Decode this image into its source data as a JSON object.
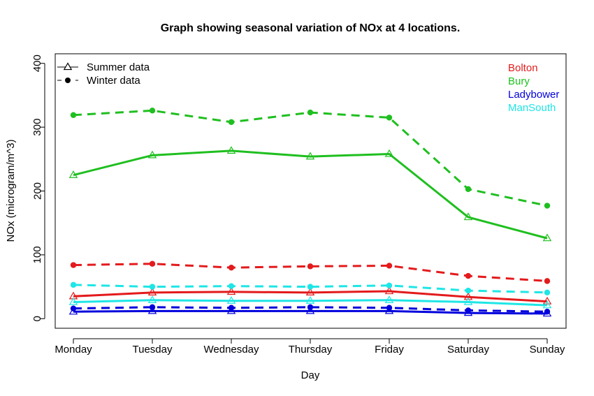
{
  "chart_data": {
    "type": "line",
    "title": "Graph showing seasonal variation of NOx at 4 locations.",
    "xlabel": "Day",
    "ylabel": "NOx (microgram/m^3)",
    "categories": [
      "Monday",
      "Tuesday",
      "Wednesday",
      "Thursday",
      "Friday",
      "Saturday",
      "Sunday"
    ],
    "y_ticks": [
      0,
      100,
      200,
      300,
      400
    ],
    "ylim": [
      -15,
      415
    ],
    "grid": false,
    "season_legend": {
      "placement": "top-left",
      "entries": [
        {
          "label": "Summer data",
          "line": "solid",
          "marker": "open-triangle"
        },
        {
          "label": "Winter data",
          "line": "dashed",
          "marker": "filled-circle"
        }
      ]
    },
    "location_legend": {
      "placement": "top-right",
      "entries": [
        {
          "label": "Bolton",
          "color": "#e41a1c"
        },
        {
          "label": "Bury",
          "color": "#1fbf1f"
        },
        {
          "label": "Ladybower",
          "color": "#0000dd"
        },
        {
          "label": "ManSouth",
          "color": "#1ee6e6"
        }
      ]
    },
    "series": [
      {
        "location": "Bury",
        "season": "Winter data",
        "color": "#1fbf1f",
        "line": "dashed",
        "marker": "filled-circle",
        "values": [
          319,
          326,
          308,
          323,
          315,
          203,
          177
        ]
      },
      {
        "location": "Bury",
        "season": "Summer data",
        "color": "#1fbf1f",
        "line": "solid",
        "marker": "open-triangle",
        "values": [
          225,
          256,
          263,
          254,
          258,
          159,
          126
        ]
      },
      {
        "location": "Bolton",
        "season": "Winter data",
        "color": "#e41a1c",
        "line": "dashed",
        "marker": "filled-circle",
        "values": [
          84,
          86,
          80,
          82,
          83,
          67,
          59
        ]
      },
      {
        "location": "Bolton",
        "season": "Summer data",
        "color": "#e41a1c",
        "line": "solid",
        "marker": "open-triangle",
        "values": [
          35,
          41,
          42,
          41,
          43,
          34,
          27
        ]
      },
      {
        "location": "ManSouth",
        "season": "Winter data",
        "color": "#1ee6e6",
        "line": "dashed",
        "marker": "filled-circle",
        "values": [
          53,
          50,
          51,
          50,
          52,
          44,
          41
        ]
      },
      {
        "location": "ManSouth",
        "season": "Summer data",
        "color": "#1ee6e6",
        "line": "solid",
        "marker": "open-triangle",
        "values": [
          26,
          29,
          28,
          28,
          29,
          26,
          21
        ]
      },
      {
        "location": "Ladybower",
        "season": "Winter data",
        "color": "#0000dd",
        "line": "dashed",
        "marker": "filled-circle",
        "values": [
          16,
          18,
          17,
          18,
          17,
          13,
          11
        ]
      },
      {
        "location": "Ladybower",
        "season": "Summer data",
        "color": "#0000dd",
        "line": "solid",
        "marker": "open-triangle",
        "values": [
          11,
          12,
          12,
          12,
          12,
          9,
          8
        ]
      }
    ]
  }
}
